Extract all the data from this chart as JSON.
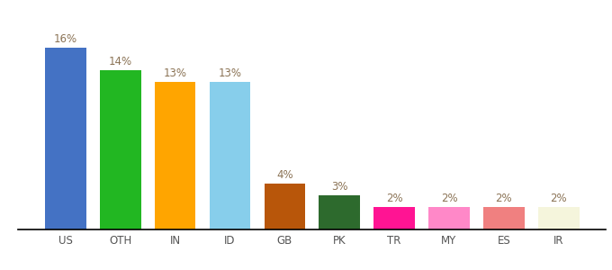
{
  "categories": [
    "US",
    "OTH",
    "IN",
    "ID",
    "GB",
    "PK",
    "TR",
    "MY",
    "ES",
    "IR"
  ],
  "values": [
    16,
    14,
    13,
    13,
    4,
    3,
    2,
    2,
    2,
    2
  ],
  "bar_colors": [
    "#4472C4",
    "#22B722",
    "#FFA500",
    "#87CEEB",
    "#B8560A",
    "#2D6A2D",
    "#FF1493",
    "#FF88C8",
    "#F08080",
    "#F5F5DC"
  ],
  "ylim": [
    0,
    19
  ],
  "bar_width": 0.75,
  "label_color": "#8B7355",
  "label_fontsize": 8.5,
  "tick_fontsize": 8.5,
  "background_color": "#ffffff"
}
